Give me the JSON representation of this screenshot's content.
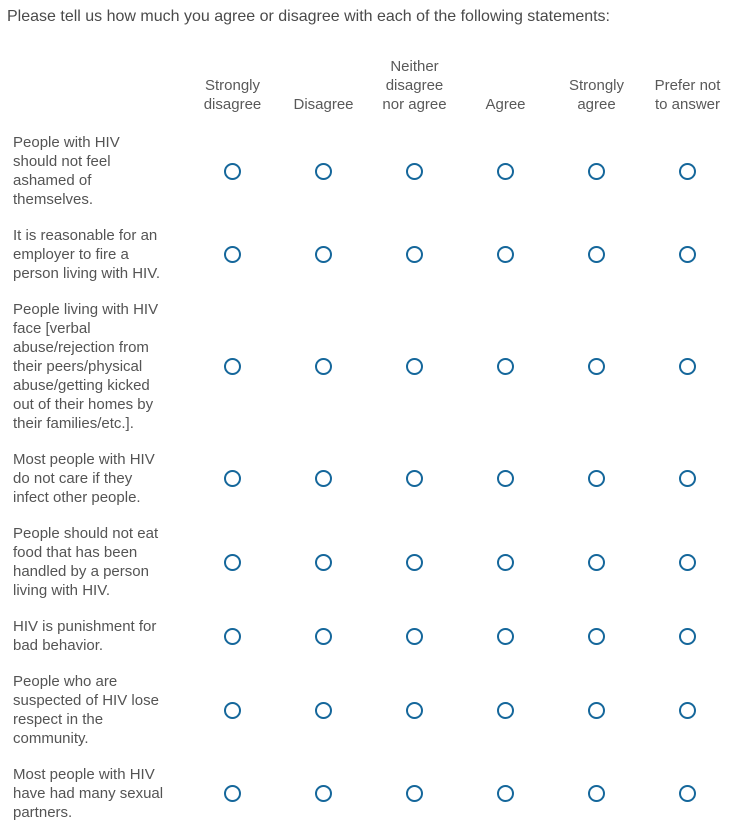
{
  "title": "Please tell us how much you agree or disagree with each of the following statements:",
  "columns": [
    "Strongly\ndisagree",
    "Disagree",
    "Neither\ndisagree\nnor agree",
    "Agree",
    "Strongly\nagree",
    "Prefer not\nto answer"
  ],
  "statements": [
    "People with HIV\nshould not feel\nashamed of\nthemselves.",
    "It is reasonable for an\nemployer to fire a\nperson living with HIV.",
    "People living with HIV\nface [verbal\nabuse/rejection from\ntheir peers/physical\nabuse/getting kicked\nout of their homes by\ntheir families/etc.].",
    "Most people with HIV\ndo not care if they\ninfect other people.",
    "People should not eat\nfood that has been\nhandled by a person\nliving with HIV.",
    "HIV is punishment for\nbad behavior.",
    "People who are\nsuspected of HIV lose\nrespect in the\ncommunity.",
    "Most people with HIV\nhave had many sexual\npartners."
  ],
  "radio": {
    "state": "unselected",
    "border_color": "#15679b"
  }
}
